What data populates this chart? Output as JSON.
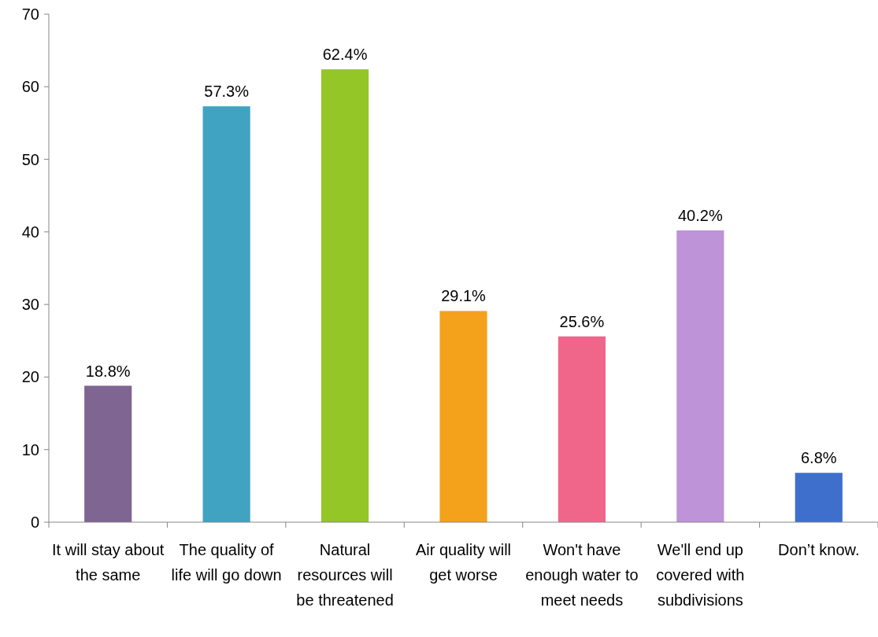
{
  "chart_data": {
    "type": "bar",
    "categories": [
      "It will stay about the same",
      "The quality of life will go down",
      "Natural resources will be threatened",
      "Air quality will get worse",
      "Won't have enough water to meet needs",
      "We'll end up covered with subdivisions",
      "Don’t know."
    ],
    "values": [
      18.8,
      57.3,
      62.4,
      29.1,
      25.6,
      40.2,
      6.8
    ],
    "colors": [
      "#7f6591",
      "#40a3c1",
      "#94c627",
      "#f4a21c",
      "#f0668a",
      "#be93d8",
      "#3f6fcd"
    ],
    "value_labels": [
      "18.8%",
      "57.3%",
      "62.4%",
      "29.1%",
      "25.6%",
      "40.2%",
      "6.8%"
    ],
    "ylim": [
      0,
      70
    ],
    "yticks": [
      0,
      10,
      20,
      30,
      40,
      50,
      60,
      70
    ],
    "grid": false
  }
}
